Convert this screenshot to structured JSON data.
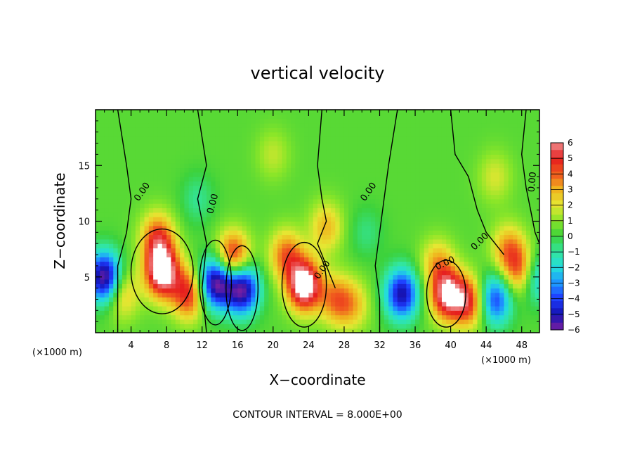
{
  "chart_data": {
    "type": "heatmap",
    "title": "vertical velocity",
    "xlabel": "X−coordinate",
    "ylabel": "Z−coordinate",
    "x_unit": "(×1000 m)",
    "x_unit_right": "(×1000 m)",
    "xlim": [
      0,
      50
    ],
    "ylim": [
      0,
      20
    ],
    "x_ticks": [
      "4",
      "8",
      "12",
      "16",
      "20",
      "24",
      "28",
      "32",
      "36",
      "40",
      "44",
      "48"
    ],
    "y_ticks": [
      "5",
      "10",
      "15"
    ],
    "colorbar_ticks": [
      "6",
      "5",
      "4",
      "3",
      "2",
      "1",
      "0",
      "−1",
      "−2",
      "−3",
      "−4",
      "−5",
      "−6"
    ],
    "colorbar_range": [
      -6,
      6
    ],
    "zero_contour_labels": [
      "0.00",
      "0.00",
      "0.00",
      "0.00",
      "0.00",
      "0.00",
      "0.00"
    ],
    "footnote": "CONTOUR INTERVAL =  8.000E+00",
    "features": [
      {
        "x": 1.0,
        "z": 5.0,
        "w": -6.5
      },
      {
        "x": 3.0,
        "z": 3.5,
        "w": 2.5
      },
      {
        "x": 7.5,
        "z": 5.5,
        "w": 6.8
      },
      {
        "x": 7.0,
        "z": 8.5,
        "w": 4.0
      },
      {
        "x": 10.5,
        "z": 3.5,
        "w": 4.5
      },
      {
        "x": 13.5,
        "z": 4.5,
        "w": -6.5
      },
      {
        "x": 15.5,
        "z": 6.8,
        "w": 5.0
      },
      {
        "x": 16.5,
        "z": 4.0,
        "w": -6.5
      },
      {
        "x": 11.5,
        "z": 12.0,
        "w": -1.2
      },
      {
        "x": 23.5,
        "z": 4.3,
        "w": 7.0
      },
      {
        "x": 21.5,
        "z": 7.0,
        "w": 3.5
      },
      {
        "x": 26.0,
        "z": 9.5,
        "w": 2.5
      },
      {
        "x": 27.0,
        "z": 3.0,
        "w": 3.0
      },
      {
        "x": 29.0,
        "z": 2.5,
        "w": 2.2
      },
      {
        "x": 30.5,
        "z": 9.0,
        "w": -1.0
      },
      {
        "x": 34.5,
        "z": 3.5,
        "w": -5.5
      },
      {
        "x": 38.5,
        "z": 5.0,
        "w": -1.5
      },
      {
        "x": 39.5,
        "z": 3.5,
        "w": 6.0
      },
      {
        "x": 42.0,
        "z": 2.8,
        "w": 4.5
      },
      {
        "x": 38.5,
        "z": 6.0,
        "w": 3.5
      },
      {
        "x": 45.0,
        "z": 3.0,
        "w": -4.5
      },
      {
        "x": 46.5,
        "z": 7.5,
        "w": 3.0
      },
      {
        "x": 48.0,
        "z": 5.5,
        "w": 4.0
      },
      {
        "x": 49.5,
        "z": 5.0,
        "w": -3.5
      },
      {
        "x": 20.0,
        "z": 16.0,
        "w": 1.2
      },
      {
        "x": 45.0,
        "z": 14.0,
        "w": 1.5
      }
    ]
  }
}
